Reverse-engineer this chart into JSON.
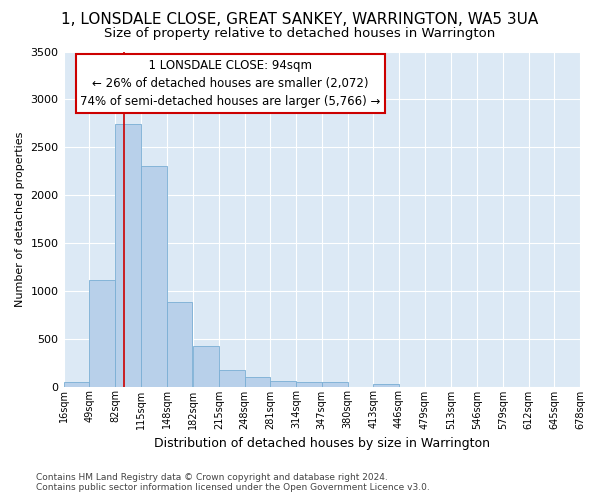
{
  "title": "1, LONSDALE CLOSE, GREAT SANKEY, WARRINGTON, WA5 3UA",
  "subtitle": "Size of property relative to detached houses in Warrington",
  "xlabel": "Distribution of detached houses by size in Warrington",
  "ylabel": "Number of detached properties",
  "footnote1": "Contains HM Land Registry data © Crown copyright and database right 2024.",
  "footnote2": "Contains public sector information licensed under the Open Government Licence v3.0.",
  "annotation_line1": "1 LONSDALE CLOSE: 94sqm",
  "annotation_line2": "← 26% of detached houses are smaller (2,072)",
  "annotation_line3": "74% of semi-detached houses are larger (5,766) →",
  "property_size": 94,
  "bin_edges": [
    16,
    49,
    82,
    115,
    148,
    182,
    215,
    248,
    281,
    314,
    347,
    380,
    413,
    446,
    479,
    513,
    546,
    579,
    612,
    645,
    678
  ],
  "bar_heights": [
    50,
    1110,
    2740,
    2300,
    880,
    425,
    170,
    95,
    55,
    45,
    50,
    0,
    30,
    0,
    0,
    0,
    0,
    0,
    0,
    0
  ],
  "bar_color": "#b8d0ea",
  "bar_edge_color": "#7aaed4",
  "vline_color": "#cc0000",
  "vline_x": 94,
  "ylim": [
    0,
    3500
  ],
  "yticks": [
    0,
    500,
    1000,
    1500,
    2000,
    2500,
    3000,
    3500
  ],
  "axes_bg_color": "#dce9f5",
  "title_fontsize": 11,
  "subtitle_fontsize": 9.5,
  "annotation_fontsize": 8.5,
  "ylabel_fontsize": 8,
  "xlabel_fontsize": 9,
  "footnote_fontsize": 6.5,
  "ytick_fontsize": 8,
  "xtick_fontsize": 7
}
